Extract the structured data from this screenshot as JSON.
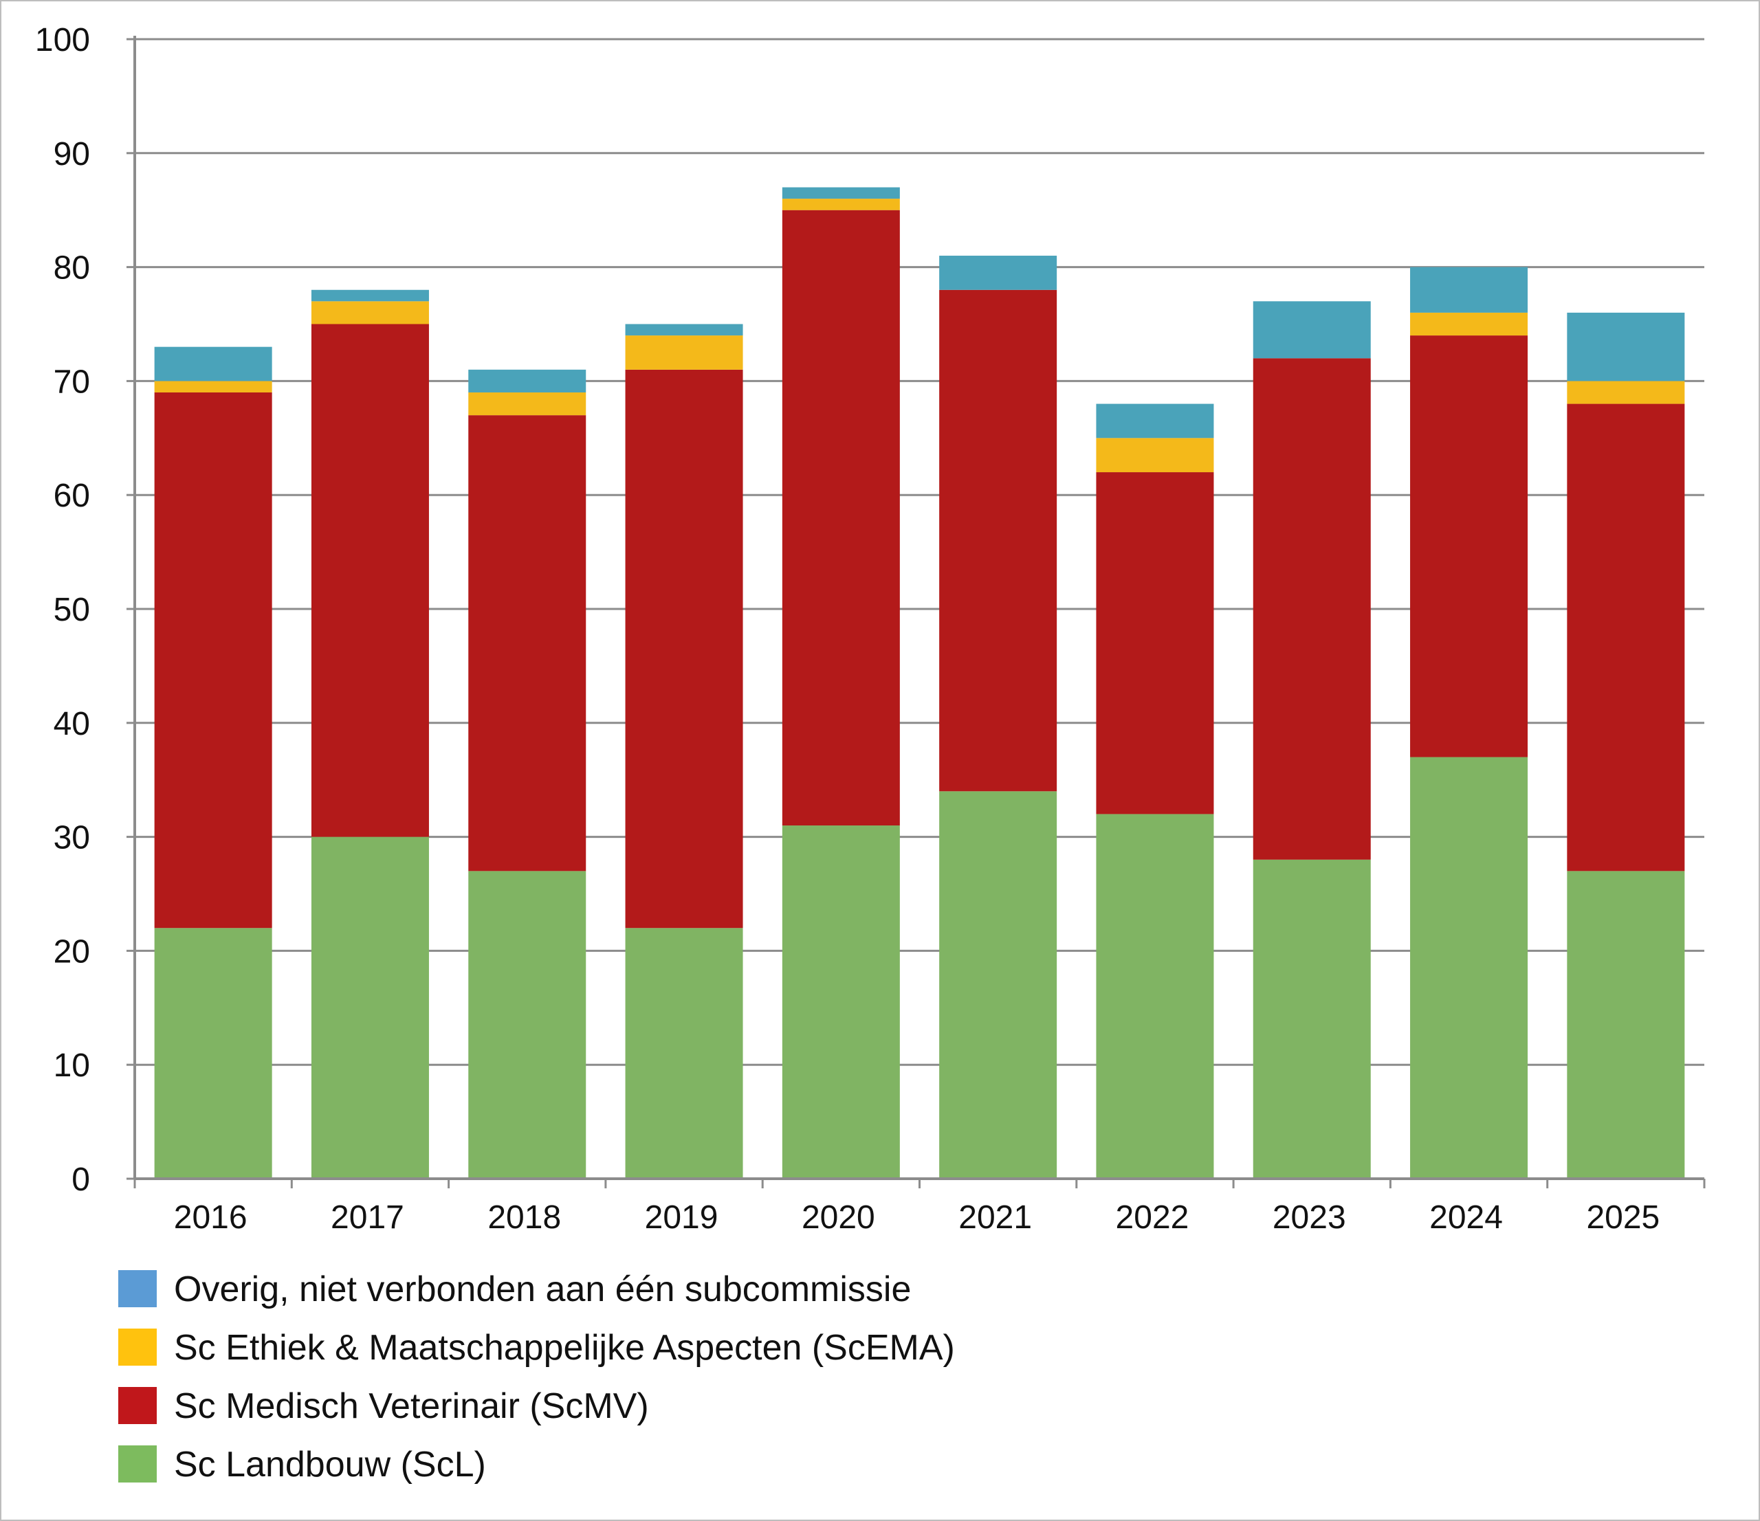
{
  "chart_data": {
    "type": "bar",
    "stacked": true,
    "title": "",
    "xlabel": "",
    "ylabel": "",
    "ylim": [
      0,
      100
    ],
    "yticks": [
      0,
      10,
      20,
      30,
      40,
      50,
      60,
      70,
      80,
      90,
      100
    ],
    "grid": true,
    "legend_position": "bottom-left",
    "categories": [
      "2016",
      "2017",
      "2018",
      "2019",
      "2020",
      "2021",
      "2022",
      "2023",
      "2024",
      "2025"
    ],
    "series": [
      {
        "name": "Sc Landbouw (ScL)",
        "color": "#80b463",
        "legend_color": "#7dbb5e",
        "values": [
          22,
          30,
          27,
          22,
          31,
          34,
          32,
          28,
          37,
          27
        ]
      },
      {
        "name": "Sc Medisch Veterinair (ScMV)",
        "color": "#b31a1a",
        "legend_color": "#c0171b",
        "values": [
          47,
          45,
          40,
          49,
          54,
          44,
          30,
          44,
          37,
          41
        ]
      },
      {
        "name": "Sc Ethiek & Maatschappelijke Aspecten (ScEMA)",
        "color": "#f4b91a",
        "legend_color": "#ffc20e",
        "values": [
          1,
          2,
          2,
          3,
          1,
          0,
          3,
          0,
          2,
          2
        ]
      },
      {
        "name": "Overig, niet verbonden aan één subcommissie",
        "color": "#4aa3ba",
        "legend_color": "#5b9bd5",
        "values": [
          3,
          1,
          2,
          1,
          1,
          3,
          3,
          5,
          4,
          6
        ]
      }
    ]
  }
}
